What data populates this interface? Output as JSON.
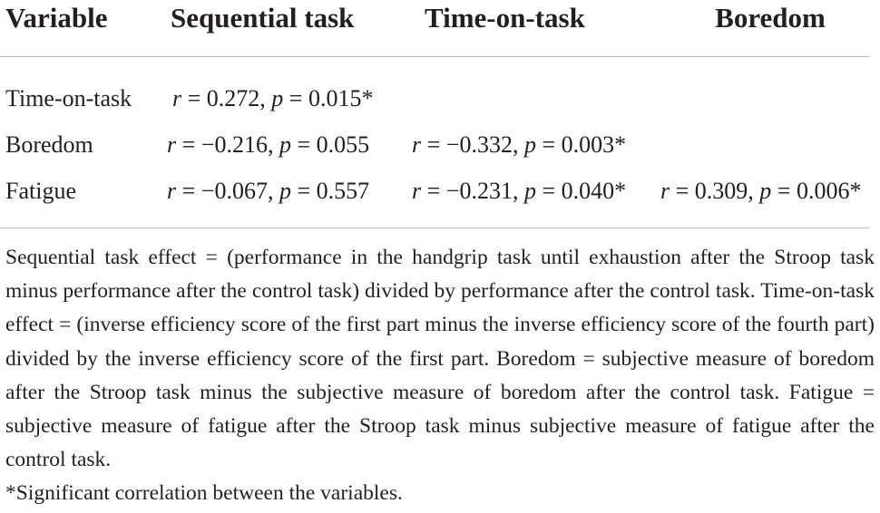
{
  "table": {
    "headers": [
      "Variable",
      "Sequential task",
      "Time-on-task",
      "Boredom"
    ],
    "rows": [
      {
        "variable": "Time-on-task",
        "cells": [
          "r = 0.272, p = 0.015*",
          "",
          ""
        ]
      },
      {
        "variable": "Boredom",
        "cells": [
          "r = −0.216, p = 0.055",
          "r = −0.332, p = 0.003*",
          ""
        ]
      },
      {
        "variable": "Fatigue",
        "cells": [
          "r = −0.067, p = 0.557",
          "r = −0.231, p = 0.040*",
          "r = 0.309, p = 0.006*"
        ]
      }
    ]
  },
  "footnote": {
    "definitions": "Sequential task effect = (performance in the handgrip task until exhaustion after the Stroop task minus performance after the control task) divided by performance after the control task. Time-on-task effect = (inverse efficiency score of the first part minus the inverse efficiency score of the fourth part) divided by the inverse efficiency score of the first part. Boredom = subjective measure of boredom after the Stroop task minus the subjective measure of boredom after the control task. Fatigue = subjective measure of fatigue after the Stroop task minus subjective measure of fatigue after the control task.",
    "significance": "*Significant correlation between the variables."
  }
}
